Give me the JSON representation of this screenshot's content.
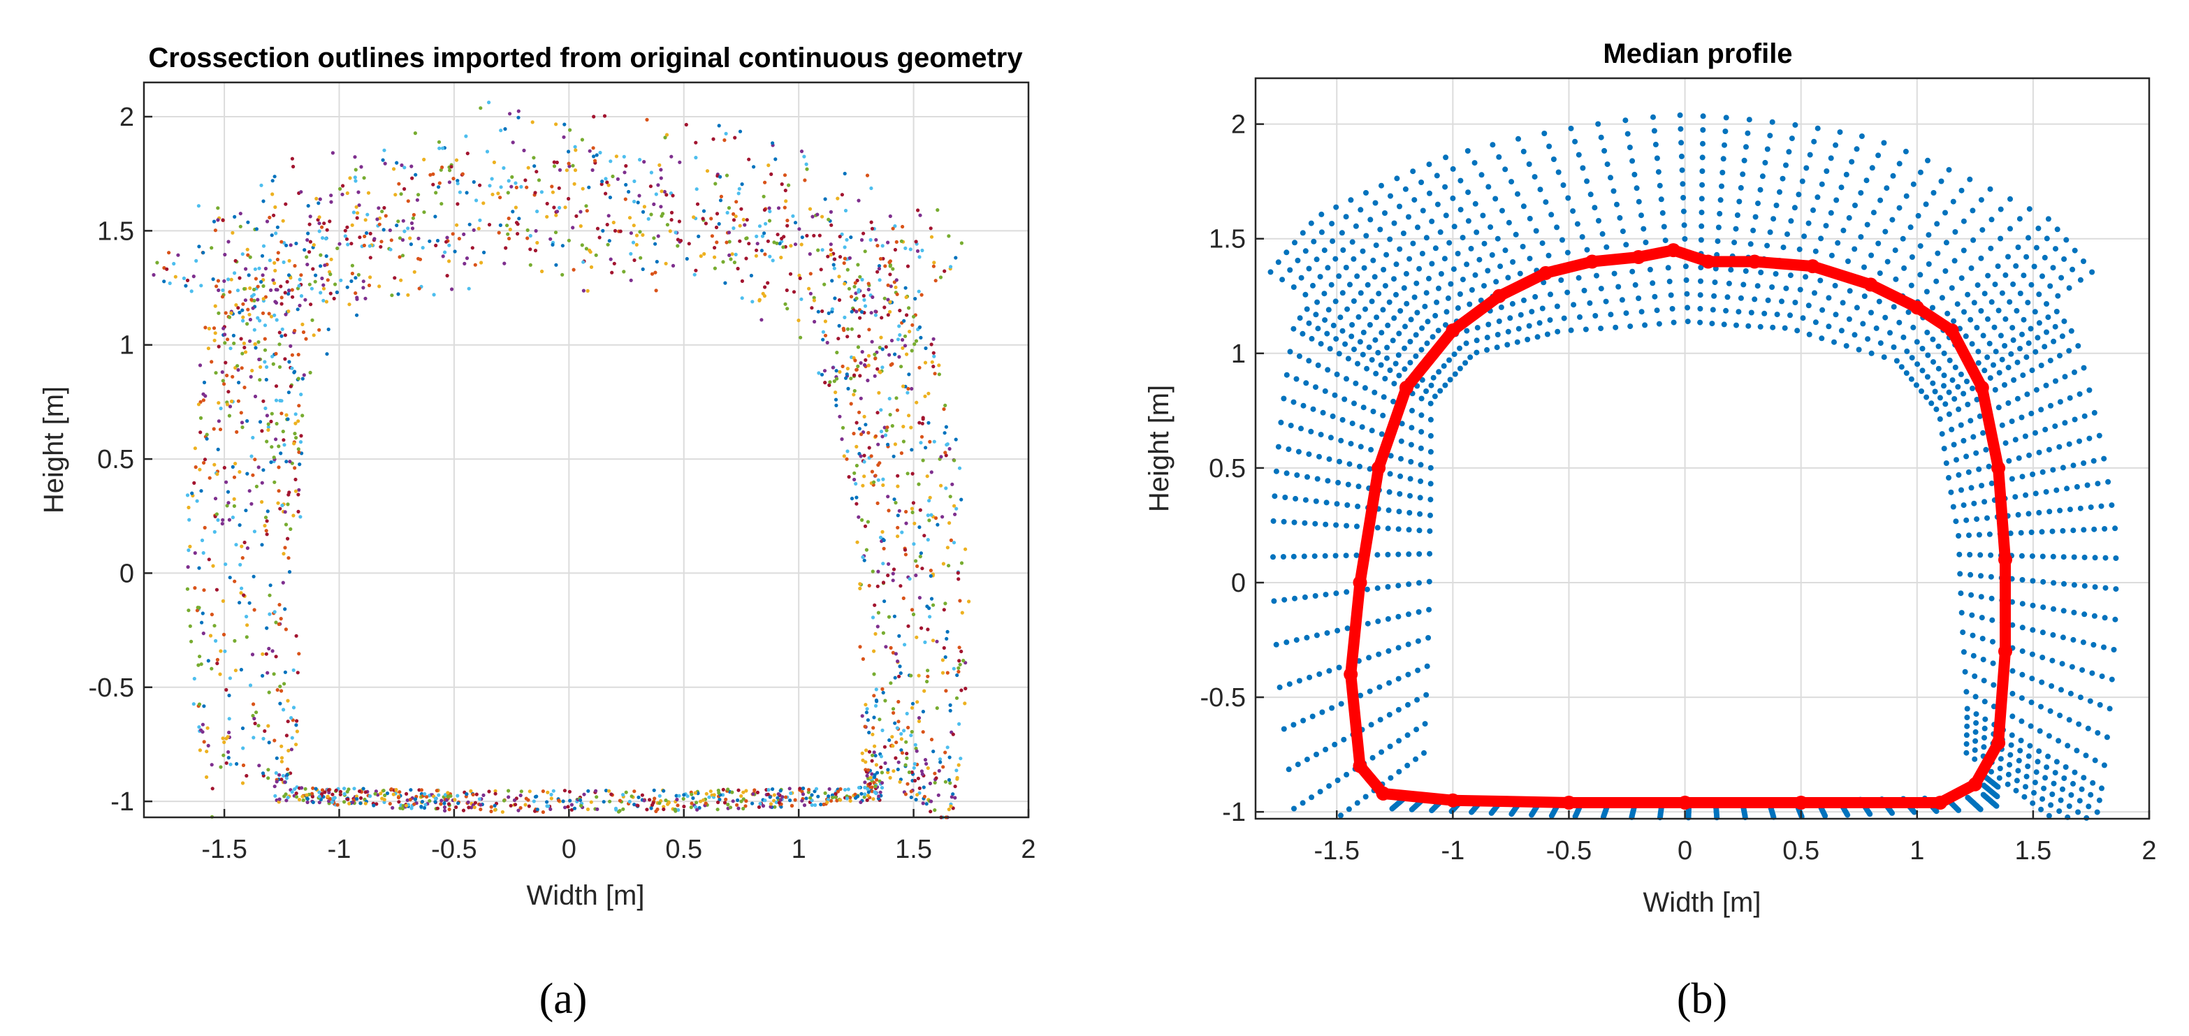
{
  "chart_data": [
    {
      "type": "scatter",
      "title": "Crossection outlines imported from original continuous geometry",
      "xlabel": "Width [m]",
      "ylabel": "Height [m]",
      "xlim": [
        -1.85,
        2.0
      ],
      "ylim": [
        -1.07,
        2.15
      ],
      "xticks": [
        -1.5,
        -1,
        -0.5,
        0,
        0.5,
        1,
        1.5,
        2
      ],
      "xtick_labels": [
        "-1.5",
        "-1",
        "-0.5",
        "0",
        "0.5",
        "1",
        "1.5",
        "2"
      ],
      "yticks": [
        -1,
        -0.5,
        0,
        0.5,
        1,
        1.5,
        2
      ],
      "ytick_labels": [
        "-1",
        "-0.5",
        "0",
        "0.5",
        "1",
        "1.5",
        "2"
      ],
      "grid": true,
      "series_colors": [
        "#0072BD",
        "#D95319",
        "#EDB120",
        "#7E2F8E",
        "#77AC30",
        "#4DBEEE",
        "#A2142F"
      ],
      "outline": {
        "description_points": [
          [
            -1.25,
            -0.95
          ],
          [
            -1.2,
            1.0
          ],
          [
            -0.9,
            1.2
          ],
          [
            0.2,
            1.25
          ],
          [
            1.25,
            1.0
          ],
          [
            1.35,
            -0.95
          ]
        ]
      },
      "caption": "(a)"
    },
    {
      "type": "scatter",
      "title": "Median profile",
      "xlabel": "Width [m]",
      "ylabel": "Height [m]",
      "xlim": [
        -1.85,
        2.0
      ],
      "ylim": [
        -1.03,
        2.2
      ],
      "xticks": [
        -1.5,
        -1,
        -0.5,
        0,
        0.5,
        1,
        1.5,
        2
      ],
      "xtick_labels": [
        "-1.5",
        "-1",
        "-0.5",
        "0",
        "0.5",
        "1",
        "1.5",
        "2"
      ],
      "yticks": [
        -1,
        -0.5,
        0,
        0.5,
        1,
        1.5,
        2
      ],
      "ytick_labels": [
        "-1",
        "-0.5",
        "0",
        "0.5",
        "1",
        "1.5",
        "2"
      ],
      "grid": true,
      "scatter_color": "#0072BD",
      "median_color": "#FF0000",
      "median_profile": {
        "x": [
          -1.3,
          -1.4,
          -1.44,
          -1.4,
          -1.32,
          -1.2,
          -1.0,
          -0.8,
          -0.6,
          -0.4,
          -0.2,
          -0.05,
          0.1,
          0.3,
          0.55,
          0.8,
          1.0,
          1.15,
          1.28,
          1.35,
          1.38,
          1.38,
          1.35,
          1.25,
          1.1,
          0.5,
          0.0,
          -0.5,
          -1.0,
          -1.3
        ],
        "y": [
          -0.92,
          -0.8,
          -0.4,
          0.0,
          0.5,
          0.85,
          1.1,
          1.25,
          1.35,
          1.4,
          1.42,
          1.45,
          1.4,
          1.4,
          1.38,
          1.3,
          1.2,
          1.1,
          0.85,
          0.5,
          0.1,
          -0.3,
          -0.7,
          -0.88,
          -0.96,
          -0.96,
          -0.96,
          -0.96,
          -0.95,
          -0.92
        ]
      },
      "caption": "(b)"
    }
  ]
}
